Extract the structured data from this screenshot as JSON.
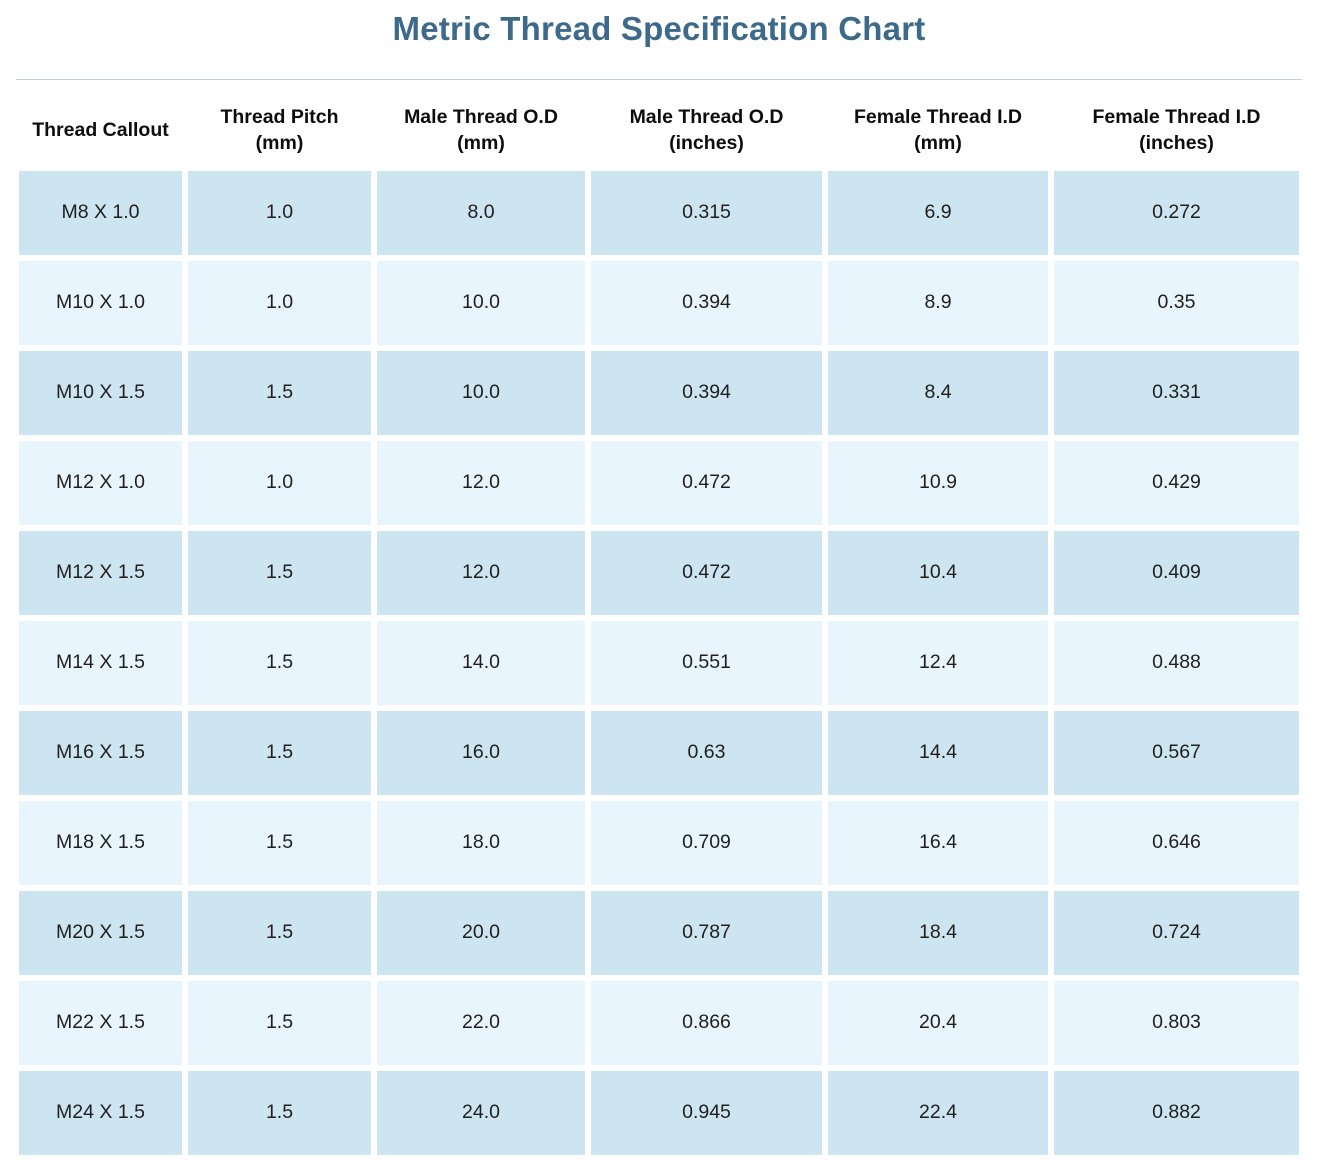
{
  "title": "Metric Thread Specification Chart",
  "colors": {
    "title_text": "#3d6a8a",
    "row_odd_bg": "#cde4f1",
    "row_even_bg": "#e9f5fc",
    "divider": "#c7cfd6",
    "cell_text": "#1f1f1f",
    "header_text": "#0d0d0d"
  },
  "chart_data": {
    "type": "table",
    "title": "Metric Thread Specification Chart",
    "columns": [
      "Thread Callout",
      "Thread Pitch (mm)",
      "Male Thread O.D (mm)",
      "Male Thread O.D (inches)",
      "Female Thread I.D (mm)",
      "Female Thread I.D (inches)"
    ],
    "rows": [
      [
        "M8 X 1.0",
        "1.0",
        "8.0",
        "0.315",
        "6.9",
        "0.272"
      ],
      [
        "M10 X 1.0",
        "1.0",
        "10.0",
        "0.394",
        "8.9",
        "0.35"
      ],
      [
        "M10 X 1.5",
        "1.5",
        "10.0",
        "0.394",
        "8.4",
        "0.331"
      ],
      [
        "M12 X 1.0",
        "1.0",
        "12.0",
        "0.472",
        "10.9",
        "0.429"
      ],
      [
        "M12 X 1.5",
        "1.5",
        "12.0",
        "0.472",
        "10.4",
        "0.409"
      ],
      [
        "M14 X 1.5",
        "1.5",
        "14.0",
        "0.551",
        "12.4",
        "0.488"
      ],
      [
        "M16 X 1.5",
        "1.5",
        "16.0",
        "0.63",
        "14.4",
        "0.567"
      ],
      [
        "M18 X 1.5",
        "1.5",
        "18.0",
        "0.709",
        "16.4",
        "0.646"
      ],
      [
        "M20 X 1.5",
        "1.5",
        "20.0",
        "0.787",
        "18.4",
        "0.724"
      ],
      [
        "M22 X 1.5",
        "1.5",
        "22.0",
        "0.866",
        "20.4",
        "0.803"
      ],
      [
        "M24 X 1.5",
        "1.5",
        "24.0",
        "0.945",
        "22.4",
        "0.882"
      ]
    ]
  }
}
